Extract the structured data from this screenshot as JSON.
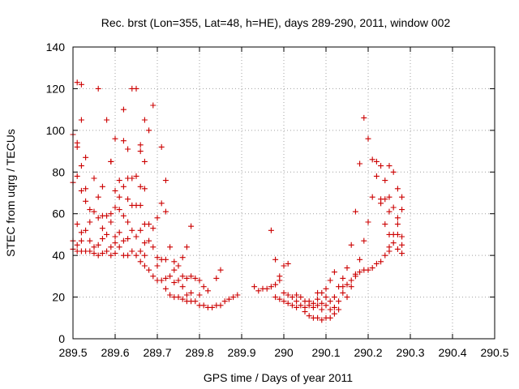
{
  "chart_data": {
    "type": "scatter",
    "title": "Rec. brst (Lon=355, Lat=48, h=HE), days 289-290, 2011, window 002",
    "xlabel": "GPS time / Days of year 2011",
    "ylabel": "STEC from uqrg / TECUs",
    "xlim": [
      289.5,
      290.5
    ],
    "ylim": [
      0,
      140
    ],
    "x_ticks": [
      289.5,
      289.6,
      289.7,
      289.8,
      289.9,
      290,
      290.1,
      290.2,
      290.3,
      290.4,
      290.5
    ],
    "x_tick_labels": [
      "289.5",
      "289.6",
      "289.7",
      "289.8",
      "289.9",
      "290",
      "290.1",
      "290.2",
      "290.3",
      "290.4",
      "290.5"
    ],
    "y_ticks": [
      0,
      20,
      40,
      60,
      80,
      100,
      120,
      140
    ],
    "y_tick_labels": [
      "0",
      "20",
      "40",
      "60",
      "80",
      "100",
      "120",
      "140"
    ],
    "grid": true,
    "marker": "plus",
    "marker_color": "#cc0000",
    "points": [
      [
        289.5,
        98
      ],
      [
        289.5,
        75
      ],
      [
        289.5,
        47
      ],
      [
        289.5,
        43
      ],
      [
        289.51,
        123
      ],
      [
        289.51,
        94
      ],
      [
        289.51,
        92
      ],
      [
        289.51,
        78
      ],
      [
        289.51,
        55
      ],
      [
        289.51,
        45
      ],
      [
        289.51,
        42
      ],
      [
        289.52,
        122
      ],
      [
        289.52,
        105
      ],
      [
        289.52,
        83
      ],
      [
        289.52,
        71
      ],
      [
        289.52,
        51
      ],
      [
        289.52,
        47
      ],
      [
        289.52,
        42
      ],
      [
        289.53,
        87
      ],
      [
        289.53,
        72
      ],
      [
        289.53,
        66
      ],
      [
        289.53,
        52
      ],
      [
        289.53,
        42
      ],
      [
        289.54,
        62
      ],
      [
        289.54,
        56
      ],
      [
        289.54,
        47
      ],
      [
        289.54,
        42
      ],
      [
        289.55,
        77
      ],
      [
        289.55,
        61
      ],
      [
        289.55,
        44
      ],
      [
        289.55,
        41
      ],
      [
        289.56,
        120
      ],
      [
        289.56,
        68
      ],
      [
        289.56,
        58
      ],
      [
        289.56,
        45
      ],
      [
        289.56,
        40
      ],
      [
        289.57,
        73
      ],
      [
        289.57,
        59
      ],
      [
        289.57,
        53
      ],
      [
        289.57,
        48
      ],
      [
        289.57,
        41
      ],
      [
        289.58,
        105
      ],
      [
        289.58,
        59
      ],
      [
        289.58,
        50
      ],
      [
        289.58,
        42
      ],
      [
        289.59,
        85
      ],
      [
        289.59,
        85
      ],
      [
        289.59,
        60
      ],
      [
        289.59,
        56
      ],
      [
        289.59,
        44
      ],
      [
        289.59,
        40
      ],
      [
        289.6,
        96
      ],
      [
        289.6,
        71
      ],
      [
        289.6,
        63
      ],
      [
        289.6,
        49
      ],
      [
        289.6,
        46
      ],
      [
        289.6,
        41
      ],
      [
        289.61,
        76
      ],
      [
        289.61,
        68
      ],
      [
        289.61,
        62
      ],
      [
        289.61,
        51
      ],
      [
        289.61,
        44
      ],
      [
        289.62,
        110
      ],
      [
        289.62,
        95
      ],
      [
        289.62,
        73
      ],
      [
        289.62,
        59
      ],
      [
        289.62,
        47
      ],
      [
        289.62,
        40
      ],
      [
        289.63,
        91
      ],
      [
        289.63,
        77
      ],
      [
        289.63,
        67
      ],
      [
        289.63,
        56
      ],
      [
        289.63,
        48
      ],
      [
        289.63,
        40
      ],
      [
        289.64,
        120
      ],
      [
        289.64,
        77
      ],
      [
        289.64,
        64
      ],
      [
        289.64,
        52
      ],
      [
        289.64,
        42
      ],
      [
        289.65,
        120
      ],
      [
        289.65,
        78
      ],
      [
        289.65,
        64
      ],
      [
        289.65,
        49
      ],
      [
        289.65,
        40
      ],
      [
        289.66,
        93
      ],
      [
        289.66,
        90
      ],
      [
        289.66,
        73
      ],
      [
        289.66,
        64
      ],
      [
        289.66,
        52
      ],
      [
        289.66,
        42
      ],
      [
        289.66,
        37
      ],
      [
        289.67,
        105
      ],
      [
        289.67,
        85
      ],
      [
        289.67,
        72
      ],
      [
        289.67,
        55
      ],
      [
        289.67,
        46
      ],
      [
        289.67,
        40
      ],
      [
        289.67,
        35
      ],
      [
        289.68,
        100
      ],
      [
        289.68,
        55
      ],
      [
        289.68,
        47
      ],
      [
        289.68,
        33
      ],
      [
        289.69,
        112
      ],
      [
        289.69,
        53
      ],
      [
        289.69,
        44
      ],
      [
        289.69,
        30
      ],
      [
        289.7,
        58
      ],
      [
        289.7,
        39
      ],
      [
        289.7,
        35
      ],
      [
        289.7,
        28
      ],
      [
        289.71,
        92
      ],
      [
        289.71,
        65
      ],
      [
        289.71,
        38
      ],
      [
        289.71,
        28
      ],
      [
        289.72,
        76
      ],
      [
        289.72,
        61
      ],
      [
        289.72,
        38
      ],
      [
        289.72,
        29
      ],
      [
        289.72,
        24
      ],
      [
        289.73,
        44
      ],
      [
        289.73,
        30
      ],
      [
        289.73,
        21
      ],
      [
        289.74,
        37
      ],
      [
        289.74,
        33
      ],
      [
        289.74,
        27
      ],
      [
        289.74,
        20
      ],
      [
        289.75,
        35
      ],
      [
        289.75,
        28
      ],
      [
        289.75,
        20
      ],
      [
        289.76,
        39
      ],
      [
        289.76,
        30
      ],
      [
        289.76,
        25
      ],
      [
        289.76,
        19
      ],
      [
        289.77,
        44
      ],
      [
        289.77,
        29
      ],
      [
        289.77,
        21
      ],
      [
        289.77,
        18
      ],
      [
        289.78,
        54
      ],
      [
        289.78,
        30
      ],
      [
        289.78,
        22
      ],
      [
        289.78,
        18
      ],
      [
        289.79,
        29
      ],
      [
        289.79,
        18
      ],
      [
        289.8,
        28
      ],
      [
        289.8,
        21
      ],
      [
        289.8,
        16
      ],
      [
        289.81,
        25
      ],
      [
        289.81,
        16
      ],
      [
        289.82,
        23
      ],
      [
        289.82,
        15
      ],
      [
        289.83,
        15
      ],
      [
        289.84,
        29
      ],
      [
        289.84,
        16
      ],
      [
        289.85,
        33
      ],
      [
        289.85,
        16
      ],
      [
        289.86,
        18
      ],
      [
        289.87,
        19
      ],
      [
        289.88,
        20
      ],
      [
        289.89,
        21
      ],
      [
        289.93,
        25
      ],
      [
        289.94,
        23
      ],
      [
        289.95,
        24
      ],
      [
        289.96,
        24
      ],
      [
        289.97,
        52
      ],
      [
        289.97,
        25
      ],
      [
        289.98,
        38
      ],
      [
        289.98,
        26
      ],
      [
        289.98,
        20
      ],
      [
        289.99,
        30
      ],
      [
        289.99,
        28
      ],
      [
        289.99,
        19
      ],
      [
        290,
        35
      ],
      [
        290,
        22
      ],
      [
        290,
        18
      ],
      [
        290.01,
        36
      ],
      [
        290.01,
        21
      ],
      [
        290.01,
        17
      ],
      [
        290.02,
        20
      ],
      [
        290.02,
        16
      ],
      [
        290.03,
        21
      ],
      [
        290.03,
        18
      ],
      [
        290.03,
        15
      ],
      [
        290.04,
        20
      ],
      [
        290.04,
        16
      ],
      [
        290.05,
        18
      ],
      [
        290.05,
        15
      ],
      [
        290.05,
        13
      ],
      [
        290.06,
        18
      ],
      [
        290.06,
        16
      ],
      [
        290.06,
        11
      ],
      [
        290.07,
        17
      ],
      [
        290.07,
        15
      ],
      [
        290.07,
        10
      ],
      [
        290.08,
        22
      ],
      [
        290.08,
        19
      ],
      [
        290.08,
        16
      ],
      [
        290.08,
        10
      ],
      [
        290.09,
        22
      ],
      [
        290.09,
        17
      ],
      [
        290.09,
        14
      ],
      [
        290.09,
        9
      ],
      [
        290.1,
        24
      ],
      [
        290.1,
        20
      ],
      [
        290.1,
        16
      ],
      [
        290.1,
        10
      ],
      [
        290.11,
        28
      ],
      [
        290.11,
        18
      ],
      [
        290.11,
        14
      ],
      [
        290.11,
        10
      ],
      [
        290.12,
        32
      ],
      [
        290.12,
        20
      ],
      [
        290.12,
        15
      ],
      [
        290.12,
        12
      ],
      [
        290.13,
        25
      ],
      [
        290.13,
        18
      ],
      [
        290.13,
        14
      ],
      [
        290.14,
        29
      ],
      [
        290.14,
        25
      ],
      [
        290.14,
        22
      ],
      [
        290.15,
        34
      ],
      [
        290.15,
        26
      ],
      [
        290.15,
        20
      ],
      [
        290.16,
        45
      ],
      [
        290.16,
        28
      ],
      [
        290.16,
        25
      ],
      [
        290.17,
        61
      ],
      [
        290.17,
        31
      ],
      [
        290.17,
        30
      ],
      [
        290.18,
        84
      ],
      [
        290.18,
        38
      ],
      [
        290.18,
        32
      ],
      [
        290.19,
        106
      ],
      [
        290.19,
        47
      ],
      [
        290.19,
        33
      ],
      [
        290.2,
        96
      ],
      [
        290.2,
        56
      ],
      [
        290.2,
        33
      ],
      [
        290.21,
        86
      ],
      [
        290.21,
        68
      ],
      [
        290.21,
        34
      ],
      [
        290.22,
        85
      ],
      [
        290.22,
        78
      ],
      [
        290.22,
        36
      ],
      [
        290.23,
        83
      ],
      [
        290.23,
        67
      ],
      [
        290.23,
        65
      ],
      [
        290.23,
        37
      ],
      [
        290.24,
        76
      ],
      [
        290.24,
        67
      ],
      [
        290.24,
        55
      ],
      [
        290.24,
        40
      ],
      [
        290.25,
        83
      ],
      [
        290.25,
        68
      ],
      [
        290.25,
        61
      ],
      [
        290.25,
        50
      ],
      [
        290.25,
        44
      ],
      [
        290.25,
        42
      ],
      [
        290.26,
        80
      ],
      [
        290.26,
        63
      ],
      [
        290.26,
        50
      ],
      [
        290.26,
        46
      ],
      [
        290.27,
        72
      ],
      [
        290.27,
        58
      ],
      [
        290.27,
        55
      ],
      [
        290.27,
        50
      ],
      [
        290.27,
        43
      ],
      [
        290.28,
        68
      ],
      [
        290.28,
        62
      ],
      [
        290.28,
        49
      ],
      [
        290.28,
        45
      ],
      [
        290.28,
        41
      ]
    ]
  }
}
